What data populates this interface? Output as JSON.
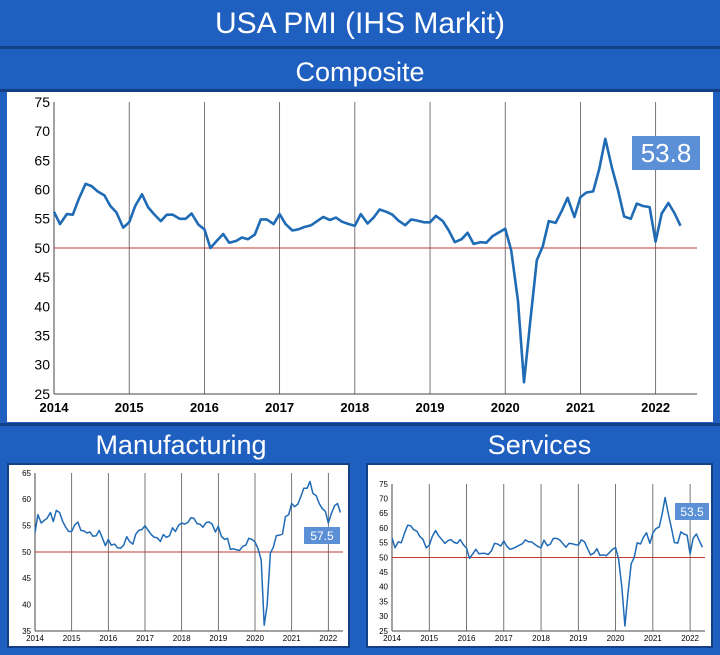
{
  "title": "USA PMI (IHS Markit)",
  "colors": {
    "background": "#1f5fbf",
    "line": "#1f6bb5",
    "reference": "#c0392b",
    "callout": "#5b8fd6",
    "grid": "#555555"
  },
  "chart_data": [
    {
      "type": "line",
      "title": "Composite",
      "xlabel": "",
      "ylabel": "",
      "ylim": [
        25,
        75
      ],
      "yticks": [
        25,
        30,
        35,
        40,
        45,
        50,
        55,
        60,
        65,
        70,
        75
      ],
      "xlim": [
        2014.0,
        2022.55
      ],
      "xticks": [
        "2014",
        "2015",
        "2016",
        "2017",
        "2018",
        "2019",
        "2020",
        "2021",
        "2022"
      ],
      "vertical_grid": true,
      "reference_line": 50,
      "callout": "53.8",
      "series": [
        {
          "x": [
            2014.0,
            2014.08,
            2014.17,
            2014.25,
            2014.33,
            2014.42,
            2014.5,
            2014.58,
            2014.67,
            2014.75,
            2014.83,
            2014.92,
            2015.0,
            2015.08,
            2015.17,
            2015.25,
            2015.33,
            2015.42,
            2015.5,
            2015.58,
            2015.67,
            2015.75,
            2015.83,
            2015.92,
            2016.0,
            2016.08,
            2016.17,
            2016.25,
            2016.33,
            2016.42,
            2016.5,
            2016.58,
            2016.67,
            2016.75,
            2016.83,
            2016.92,
            2017.0,
            2017.08,
            2017.17,
            2017.25,
            2017.33,
            2017.42,
            2017.5,
            2017.58,
            2017.67,
            2017.75,
            2017.83,
            2017.92,
            2018.0,
            2018.08,
            2018.17,
            2018.25,
            2018.33,
            2018.42,
            2018.5,
            2018.58,
            2018.67,
            2018.75,
            2018.83,
            2018.92,
            2019.0,
            2019.08,
            2019.17,
            2019.25,
            2019.33,
            2019.42,
            2019.5,
            2019.58,
            2019.67,
            2019.75,
            2019.83,
            2019.92,
            2020.0,
            2020.08,
            2020.17,
            2020.25,
            2020.33,
            2020.42,
            2020.5,
            2020.58,
            2020.67,
            2020.75,
            2020.83,
            2020.92,
            2021.0,
            2021.08,
            2021.17,
            2021.25,
            2021.33,
            2021.42,
            2021.5,
            2021.58,
            2021.67,
            2021.75,
            2021.83,
            2021.92,
            2022.0,
            2022.08,
            2022.17,
            2022.25,
            2022.33
          ],
          "y": [
            56.2,
            54.1,
            55.8,
            55.7,
            58.4,
            61.0,
            60.6,
            59.7,
            59.0,
            57.2,
            56.1,
            53.5,
            54.4,
            57.2,
            59.2,
            57.0,
            55.8,
            54.6,
            55.7,
            55.7,
            55.0,
            55.0,
            55.9,
            54.0,
            53.2,
            50.0,
            51.3,
            52.4,
            50.9,
            51.2,
            51.8,
            51.5,
            52.3,
            54.9,
            54.9,
            54.1,
            55.8,
            54.1,
            53.0,
            53.2,
            53.6,
            53.9,
            54.6,
            55.3,
            54.8,
            55.2,
            54.5,
            54.1,
            53.8,
            55.8,
            54.2,
            55.2,
            56.6,
            56.2,
            55.7,
            54.7,
            53.9,
            54.9,
            54.7,
            54.4,
            54.4,
            55.5,
            54.6,
            53.0,
            51.0,
            51.5,
            52.6,
            50.7,
            51.0,
            50.9,
            52.0,
            52.7,
            53.3,
            49.6,
            40.9,
            27.0,
            37.0,
            47.9,
            50.3,
            54.6,
            54.3,
            56.3,
            58.6,
            55.3,
            58.7,
            59.5,
            59.7,
            63.5,
            68.7,
            63.7,
            59.9,
            55.4,
            55.0,
            57.6,
            57.2,
            57.0,
            51.1,
            55.9,
            57.7,
            56.0,
            53.8
          ]
        }
      ]
    },
    {
      "type": "line",
      "title": "Manufacturing",
      "ylim": [
        35,
        65
      ],
      "yticks": [
        35,
        40,
        45,
        50,
        55,
        60,
        65
      ],
      "xlim": [
        2014.0,
        2022.4
      ],
      "xticks": [
        "2014",
        "2015",
        "2016",
        "2017",
        "2018",
        "2019",
        "2020",
        "2021",
        "2022"
      ],
      "vertical_grid": true,
      "reference_line": 50,
      "callout": "57.5",
      "series": [
        {
          "x": [
            2014.0,
            2014.08,
            2014.17,
            2014.25,
            2014.33,
            2014.42,
            2014.5,
            2014.58,
            2014.67,
            2014.75,
            2014.83,
            2014.92,
            2015.0,
            2015.08,
            2015.17,
            2015.25,
            2015.33,
            2015.42,
            2015.5,
            2015.58,
            2015.67,
            2015.75,
            2015.83,
            2015.92,
            2016.0,
            2016.08,
            2016.17,
            2016.25,
            2016.33,
            2016.42,
            2016.5,
            2016.58,
            2016.67,
            2016.75,
            2016.83,
            2016.92,
            2017.0,
            2017.08,
            2017.17,
            2017.25,
            2017.33,
            2017.42,
            2017.5,
            2017.58,
            2017.67,
            2017.75,
            2017.83,
            2017.92,
            2018.0,
            2018.08,
            2018.17,
            2018.25,
            2018.33,
            2018.42,
            2018.5,
            2018.58,
            2018.67,
            2018.75,
            2018.83,
            2018.92,
            2019.0,
            2019.08,
            2019.17,
            2019.25,
            2019.33,
            2019.42,
            2019.5,
            2019.58,
            2019.67,
            2019.75,
            2019.83,
            2019.92,
            2020.0,
            2020.08,
            2020.17,
            2020.25,
            2020.33,
            2020.42,
            2020.5,
            2020.58,
            2020.67,
            2020.75,
            2020.83,
            2020.92,
            2021.0,
            2021.08,
            2021.17,
            2021.25,
            2021.33,
            2021.42,
            2021.5,
            2021.58,
            2021.67,
            2021.75,
            2021.83,
            2021.92,
            2022.0,
            2022.08,
            2022.17,
            2022.25,
            2022.33
          ],
          "y": [
            53.7,
            57.1,
            55.5,
            56.0,
            56.4,
            57.5,
            55.8,
            57.9,
            57.5,
            55.9,
            54.8,
            53.9,
            53.9,
            55.1,
            55.7,
            54.1,
            54.0,
            53.6,
            53.8,
            53.0,
            53.1,
            54.1,
            52.8,
            51.2,
            52.4,
            51.3,
            51.5,
            50.8,
            50.7,
            51.3,
            52.9,
            52.0,
            51.5,
            53.4,
            54.1,
            54.3,
            55.0,
            54.2,
            53.3,
            52.8,
            52.7,
            52.0,
            53.3,
            52.8,
            53.1,
            54.6,
            53.9,
            55.1,
            55.5,
            55.3,
            55.6,
            56.5,
            56.4,
            55.4,
            55.3,
            54.7,
            55.6,
            55.7,
            55.3,
            53.8,
            54.9,
            53.0,
            52.4,
            52.6,
            50.5,
            50.6,
            50.4,
            50.3,
            51.1,
            51.3,
            52.6,
            52.4,
            51.9,
            50.7,
            48.5,
            36.1,
            39.8,
            49.8,
            50.9,
            53.1,
            53.2,
            53.4,
            56.7,
            57.1,
            59.2,
            58.6,
            59.1,
            60.5,
            62.1,
            62.1,
            63.4,
            61.1,
            60.7,
            59.2,
            58.3,
            57.7,
            55.5,
            57.3,
            58.8,
            59.2,
            57.5
          ]
        }
      ]
    },
    {
      "type": "line",
      "title": "Services",
      "ylim": [
        25,
        75
      ],
      "yticks": [
        25,
        30,
        35,
        40,
        45,
        50,
        55,
        60,
        65,
        70,
        75
      ],
      "xlim": [
        2014.0,
        2022.4
      ],
      "xticks": [
        "2014",
        "2015",
        "2016",
        "2017",
        "2018",
        "2019",
        "2020",
        "2021",
        "2022"
      ],
      "vertical_grid": true,
      "reference_line": 50,
      "callout": "53.5",
      "series": [
        {
          "x": [
            2014.0,
            2014.08,
            2014.17,
            2014.25,
            2014.33,
            2014.42,
            2014.5,
            2014.58,
            2014.67,
            2014.75,
            2014.83,
            2014.92,
            2015.0,
            2015.08,
            2015.17,
            2015.25,
            2015.33,
            2015.42,
            2015.5,
            2015.58,
            2015.67,
            2015.75,
            2015.83,
            2015.92,
            2016.0,
            2016.08,
            2016.17,
            2016.25,
            2016.33,
            2016.42,
            2016.5,
            2016.58,
            2016.67,
            2016.75,
            2016.83,
            2016.92,
            2017.0,
            2017.08,
            2017.17,
            2017.25,
            2017.33,
            2017.42,
            2017.5,
            2017.58,
            2017.67,
            2017.75,
            2017.83,
            2017.92,
            2018.0,
            2018.08,
            2018.17,
            2018.25,
            2018.33,
            2018.42,
            2018.5,
            2018.58,
            2018.67,
            2018.75,
            2018.83,
            2018.92,
            2019.0,
            2019.08,
            2019.17,
            2019.25,
            2019.33,
            2019.42,
            2019.5,
            2019.58,
            2019.67,
            2019.75,
            2019.83,
            2019.92,
            2020.0,
            2020.08,
            2020.17,
            2020.25,
            2020.33,
            2020.42,
            2020.5,
            2020.58,
            2020.67,
            2020.75,
            2020.83,
            2020.92,
            2021.0,
            2021.08,
            2021.17,
            2021.25,
            2021.33,
            2021.42,
            2021.5,
            2021.58,
            2021.67,
            2021.75,
            2021.83,
            2021.92,
            2022.0,
            2022.08,
            2022.17,
            2022.25,
            2022.33
          ],
          "y": [
            56.7,
            53.3,
            55.3,
            55.0,
            58.1,
            61.0,
            60.8,
            59.5,
            58.9,
            57.1,
            56.2,
            53.3,
            54.2,
            57.1,
            59.2,
            57.4,
            56.2,
            54.8,
            55.7,
            56.1,
            55.1,
            54.8,
            56.1,
            54.3,
            53.2,
            49.7,
            51.3,
            52.8,
            51.3,
            51.4,
            51.4,
            51.0,
            52.3,
            54.8,
            54.6,
            53.9,
            55.6,
            53.8,
            52.8,
            53.1,
            53.6,
            54.2,
            54.7,
            56.0,
            55.3,
            55.3,
            54.5,
            53.7,
            53.3,
            55.9,
            54.0,
            54.6,
            56.5,
            56.5,
            56.0,
            54.8,
            53.5,
            54.8,
            54.7,
            54.4,
            54.2,
            56.0,
            55.3,
            53.0,
            50.9,
            51.5,
            53.0,
            50.7,
            50.9,
            50.6,
            51.6,
            52.8,
            53.4,
            49.4,
            39.8,
            26.7,
            37.5,
            47.9,
            50.0,
            55.0,
            54.6,
            56.9,
            58.4,
            54.8,
            58.3,
            59.8,
            60.4,
            64.7,
            70.4,
            64.6,
            59.9,
            55.1,
            54.9,
            58.7,
            58.0,
            57.6,
            51.2,
            56.5,
            58.0,
            55.6,
            53.5
          ]
        }
      ]
    }
  ]
}
